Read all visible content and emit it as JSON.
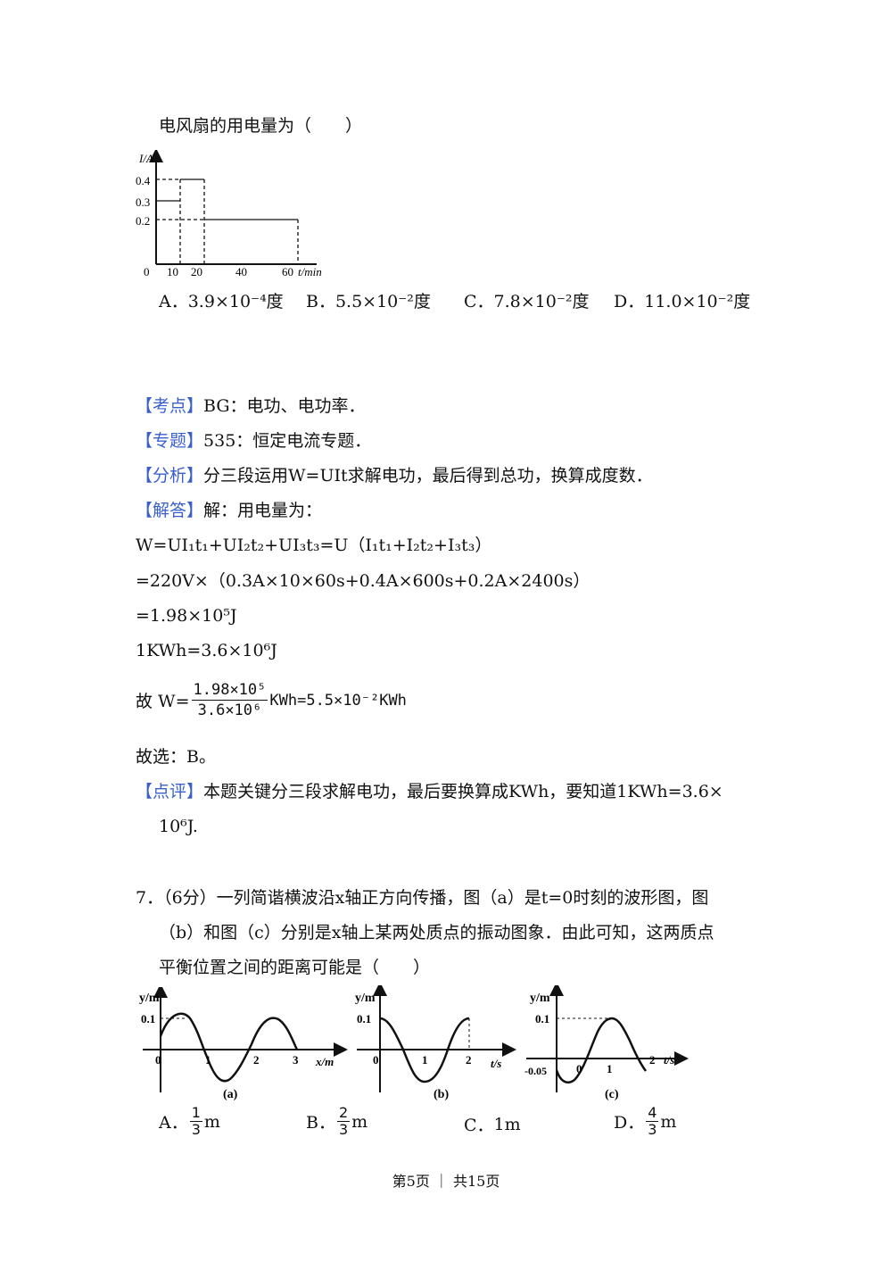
{
  "q6": {
    "stem_tail": "电风扇的用电量为（　　）",
    "graph": {
      "y_axis_label": "I/A",
      "x_axis_label": "t/min",
      "y_ticks": [
        "0.4",
        "0.3",
        "0.2"
      ],
      "x_ticks": [
        "0",
        "10",
        "20",
        "40",
        "60"
      ],
      "segments": [
        {
          "t_start": 0,
          "t_end": 10,
          "current": 0.3
        },
        {
          "t_start": 10,
          "t_end": 20,
          "current": 0.4
        },
        {
          "t_start": 20,
          "t_end": 60,
          "current": 0.2
        }
      ]
    },
    "options": {
      "a": "A．3.9×10⁻⁴度",
      "b": "B．5.5×10⁻²度",
      "c": "C．7.8×10⁻²度",
      "d": "D．11.0×10⁻²度"
    }
  },
  "solution": {
    "kaodian_tag": "【考点】",
    "kaodian": "BG：电功、电功率．",
    "zhuanti_tag": "【专题】",
    "zhuanti": "535：恒定电流专题．",
    "fenxi_tag": "【分析】",
    "fenxi": "分三段运用W=UIt求解电功，最后得到总功，换算成度数．",
    "jieda_tag": "【解答】",
    "jieda": "解：用电量为：",
    "eq1": "W=UI₁t₁+UI₂t₂+UI₃t₃=U（I₁t₁+I₂t₂+I₃t₃）",
    "eq2": "=220V×（0.3A×10×60s+0.4A×600s+0.2A×2400s）",
    "eq3": "=1.98×10⁵J",
    "eq4": "1KWh=3.6×10⁶J",
    "eq5_prefix": "故 W=",
    "eq5_num": "1.98×10⁵",
    "eq5_den": "3.6×10⁶",
    "eq5_suffix": "KWh=5.5×10⁻²KWh",
    "answer": "故选：B。",
    "dianping_tag": "【点评】",
    "dianping_1": "本题关键分三段求解电功，最后要换算成KWh，要知道1KWh=3.6×",
    "dianping_2": "10⁶J."
  },
  "q7": {
    "line1": "7．（6分）一列简谐横波沿x轴正方向传播，图（a）是t=0时刻的波形图，图",
    "line2": "（b）和图（c）分别是x轴上某两处质点的振动图象．由此可知，这两质点",
    "line3": "平衡位置之间的距离可能是（　　）",
    "graph_a": {
      "ylabel": "y/m",
      "xlabel": "x/m",
      "y_tick": "0.1",
      "x_ticks": [
        "0",
        "1",
        "2",
        "3"
      ],
      "caption": "(a)"
    },
    "graph_b": {
      "ylabel": "y/m",
      "xlabel": "t/s",
      "y_tick": "0.1",
      "x_ticks": [
        "0",
        "1",
        "2"
      ],
      "caption": "(b)"
    },
    "graph_c": {
      "ylabel": "y/m",
      "xlabel": "t/s",
      "y_tick": "0.1",
      "y_neg_tick": "-0.05",
      "x_ticks": [
        "0",
        "1",
        "2"
      ],
      "caption": "(c)"
    },
    "options": {
      "a_label": "A．",
      "a_num": "1",
      "a_den": "3",
      "a_unit": "m",
      "b_label": "B．",
      "b_num": "2",
      "b_den": "3",
      "b_unit": "m",
      "c_label": "C．",
      "c_text": "1m",
      "d_label": "D．",
      "d_num": "4",
      "d_den": "3",
      "d_unit": "m"
    }
  },
  "footer": "第5页 ｜ 共15页"
}
